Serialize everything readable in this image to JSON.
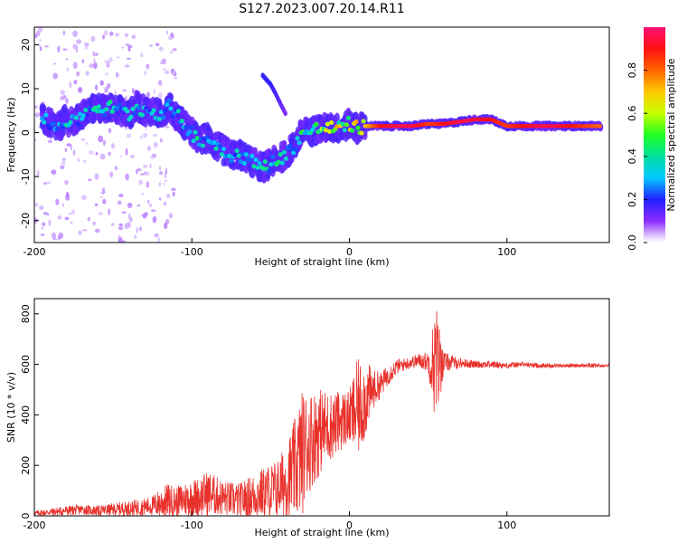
{
  "title": "S127.2023.007.20.14.R11",
  "colors": {
    "snr_line": "#e8312b",
    "axis": "#000000",
    "background": "#ffffff"
  },
  "chart_data": [
    {
      "type": "heatmap",
      "title": "S127.2023.007.20.14.R11",
      "xlabel": "Height of straight line (km)",
      "ylabel": "Frequency (Hz)",
      "xlim": [
        -200,
        165
      ],
      "ylim": [
        -25,
        24
      ],
      "xticks": [
        -200,
        -100,
        0,
        100
      ],
      "xtick_labels": [
        "-200",
        "-100",
        "0",
        "100"
      ],
      "yticks": [
        -20,
        -10,
        0,
        10,
        20
      ],
      "ytick_labels": [
        "-20",
        "-10",
        "0",
        "10",
        "20"
      ],
      "colorbar": {
        "label": "Normalized spectral amplitude",
        "range": [
          0,
          1
        ],
        "ticks": [
          0.0,
          0.2,
          0.4,
          0.6,
          0.8
        ],
        "tick_labels": [
          "0.0",
          "0.2",
          "0.4",
          "0.6",
          "0.8"
        ]
      },
      "ridge": [
        {
          "x": -195,
          "y": 3,
          "a": 0.25
        },
        {
          "x": -190,
          "y": 2,
          "a": 0.3
        },
        {
          "x": -185,
          "y": 1,
          "a": 0.28
        },
        {
          "x": -180,
          "y": 3,
          "a": 0.35
        },
        {
          "x": -175,
          "y": 2,
          "a": 0.3
        },
        {
          "x": -170,
          "y": 4,
          "a": 0.3
        },
        {
          "x": -165,
          "y": 5,
          "a": 0.3
        },
        {
          "x": -160,
          "y": 6,
          "a": 0.35
        },
        {
          "x": -155,
          "y": 5,
          "a": 0.3
        },
        {
          "x": -150,
          "y": 6,
          "a": 0.35
        },
        {
          "x": -145,
          "y": 5,
          "a": 0.3
        },
        {
          "x": -140,
          "y": 4,
          "a": 0.3
        },
        {
          "x": -135,
          "y": 6,
          "a": 0.32
        },
        {
          "x": -130,
          "y": 5,
          "a": 0.3
        },
        {
          "x": -125,
          "y": 5,
          "a": 0.3
        },
        {
          "x": -120,
          "y": 4,
          "a": 0.28
        },
        {
          "x": -115,
          "y": 6,
          "a": 0.28
        },
        {
          "x": -110,
          "y": 4,
          "a": 0.3
        },
        {
          "x": -105,
          "y": 2,
          "a": 0.3
        },
        {
          "x": -100,
          "y": 0,
          "a": 0.32
        },
        {
          "x": -95,
          "y": -2,
          "a": 0.35
        },
        {
          "x": -90,
          "y": -1,
          "a": 0.3
        },
        {
          "x": -85,
          "y": -3,
          "a": 0.32
        },
        {
          "x": -80,
          "y": -4,
          "a": 0.3
        },
        {
          "x": -75,
          "y": -5,
          "a": 0.35
        },
        {
          "x": -70,
          "y": -5,
          "a": 0.32
        },
        {
          "x": -65,
          "y": -6,
          "a": 0.35
        },
        {
          "x": -60,
          "y": -7,
          "a": 0.35
        },
        {
          "x": -55,
          "y": -8,
          "a": 0.38
        },
        {
          "x": -50,
          "y": -7,
          "a": 0.35
        },
        {
          "x": -45,
          "y": -6,
          "a": 0.35
        },
        {
          "x": -40,
          "y": -5,
          "a": 0.32
        },
        {
          "x": -35,
          "y": -3,
          "a": 0.3
        },
        {
          "x": -30,
          "y": 0,
          "a": 0.4
        },
        {
          "x": -25,
          "y": 0,
          "a": 0.45
        },
        {
          "x": -20,
          "y": 1,
          "a": 0.55
        },
        {
          "x": -15,
          "y": 1,
          "a": 0.6
        },
        {
          "x": -10,
          "y": 1,
          "a": 0.65
        },
        {
          "x": -5,
          "y": 1,
          "a": 0.6
        },
        {
          "x": 0,
          "y": 2,
          "a": 0.55
        },
        {
          "x": 5,
          "y": 1,
          "a": 0.6
        },
        {
          "x": 10,
          "y": 1.5,
          "a": 0.7
        },
        {
          "x": 20,
          "y": 1.5,
          "a": 0.9
        },
        {
          "x": 30,
          "y": 1.5,
          "a": 0.95
        },
        {
          "x": 40,
          "y": 1.5,
          "a": 0.95
        },
        {
          "x": 50,
          "y": 2,
          "a": 0.85
        },
        {
          "x": 60,
          "y": 2,
          "a": 0.9
        },
        {
          "x": 70,
          "y": 2.5,
          "a": 0.95
        },
        {
          "x": 80,
          "y": 3,
          "a": 0.95
        },
        {
          "x": 90,
          "y": 3,
          "a": 0.9
        },
        {
          "x": 100,
          "y": 1.5,
          "a": 0.85
        },
        {
          "x": 110,
          "y": 1.5,
          "a": 0.9
        },
        {
          "x": 120,
          "y": 1.5,
          "a": 0.95
        },
        {
          "x": 130,
          "y": 1.5,
          "a": 0.95
        },
        {
          "x": 140,
          "y": 1.5,
          "a": 0.9
        },
        {
          "x": 150,
          "y": 1.5,
          "a": 0.85
        },
        {
          "x": 160,
          "y": 1.5,
          "a": 0.8
        }
      ],
      "branch": [
        {
          "x": -55,
          "y": 13,
          "a": 0.3
        },
        {
          "x": -50,
          "y": 11,
          "a": 0.3
        },
        {
          "x": -47,
          "y": 9,
          "a": 0.28
        },
        {
          "x": -43,
          "y": 6,
          "a": 0.25
        },
        {
          "x": -40,
          "y": 4,
          "a": 0.22
        }
      ]
    },
    {
      "type": "line",
      "xlabel": "Height of straight line (km)",
      "ylabel": "SNR (10 * v/v)",
      "xlim": [
        -200,
        165
      ],
      "ylim": [
        0,
        860
      ],
      "xticks": [
        -200,
        -100,
        0,
        100
      ],
      "xtick_labels": [
        "-200",
        "-100",
        "0",
        "100"
      ],
      "yticks": [
        0,
        200,
        400,
        600,
        800
      ],
      "ytick_labels": [
        "0",
        "200",
        "400",
        "600",
        "800"
      ],
      "series": [
        {
          "name": "SNR",
          "x": [
            -200,
            -190,
            -180,
            -170,
            -160,
            -150,
            -140,
            -130,
            -125,
            -120,
            -115,
            -110,
            -105,
            -100,
            -95,
            -90,
            -85,
            -80,
            -75,
            -70,
            -65,
            -60,
            -55,
            -50,
            -45,
            -40,
            -35,
            -30,
            -25,
            -20,
            -15,
            -10,
            -5,
            0,
            5,
            10,
            15,
            20,
            25,
            30,
            35,
            40,
            45,
            50,
            55,
            60,
            70,
            80,
            90,
            100,
            110,
            120,
            130,
            140,
            150,
            160,
            165
          ],
          "values": [
            10,
            15,
            20,
            25,
            20,
            25,
            30,
            35,
            40,
            50,
            60,
            55,
            65,
            70,
            75,
            90,
            80,
            70,
            65,
            60,
            70,
            80,
            90,
            100,
            110,
            140,
            180,
            250,
            300,
            330,
            350,
            360,
            380,
            390,
            420,
            460,
            500,
            520,
            560,
            590,
            600,
            610,
            615,
            610,
            600,
            610,
            605,
            600,
            600,
            595,
            600,
            595,
            595,
            595,
            595,
            595,
            600
          ],
          "amplitude": [
            10,
            15,
            20,
            20,
            20,
            25,
            30,
            35,
            40,
            60,
            70,
            60,
            70,
            75,
            80,
            90,
            80,
            70,
            70,
            70,
            80,
            90,
            100,
            110,
            120,
            150,
            200,
            250,
            200,
            180,
            150,
            130,
            120,
            110,
            200,
            160,
            80,
            50,
            40,
            30,
            25,
            25,
            30,
            40,
            250,
            40,
            20,
            15,
            15,
            12,
            10,
            10,
            8,
            8,
            8,
            8,
            8
          ]
        }
      ]
    }
  ]
}
